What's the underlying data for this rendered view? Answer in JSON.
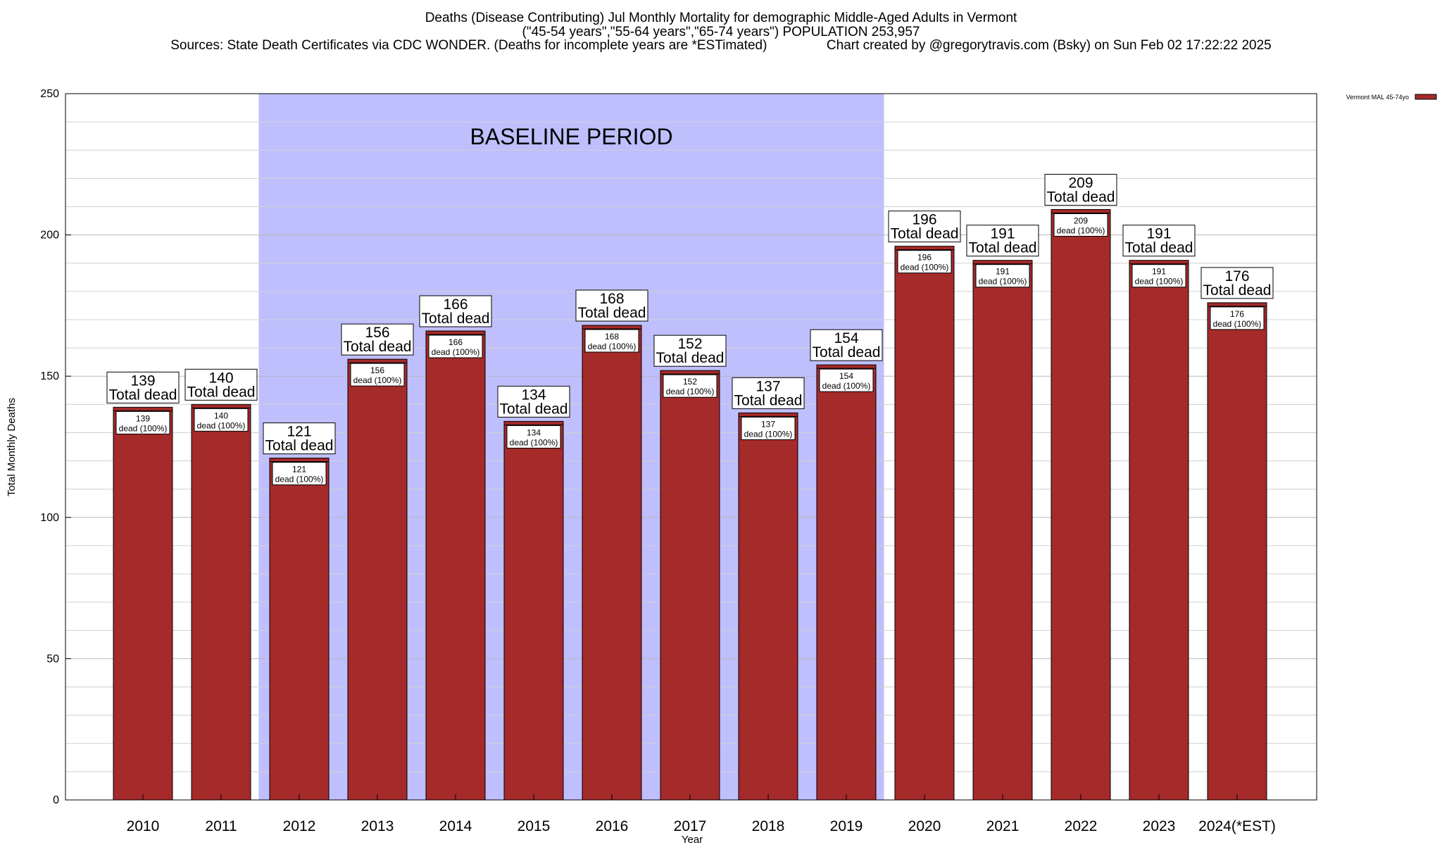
{
  "header": {
    "title_line1": "Deaths (Disease Contributing) Jul Monthly Mortality for demographic Middle-Aged Adults in Vermont",
    "title_line2": "(\"45-54 years\",\"55-64 years\",\"65-74 years\") POPULATION 253,957",
    "title_line3": "Sources: State Death Certificates via CDC WONDER. (Deaths for incomplete years are *ESTimated)                Chart created by @gregorytravis.com (Bsky) on Sun Feb 02 17:22:22 2025"
  },
  "chart_data": {
    "type": "bar",
    "title": "Deaths (Disease Contributing) Jul Monthly Mortality for demographic Middle-Aged Adults in Vermont",
    "xlabel": "Year",
    "ylabel": "Total Monthly Deaths",
    "ylim": [
      0,
      250
    ],
    "y_ticks": [
      0,
      50,
      100,
      150,
      200,
      250
    ],
    "y_minor_step": 10,
    "grid": true,
    "categories": [
      "2010",
      "2011",
      "2012",
      "2013",
      "2014",
      "2015",
      "2016",
      "2017",
      "2018",
      "2019",
      "2020",
      "2021",
      "2022",
      "2023",
      "2024(*EST)"
    ],
    "series": [
      {
        "name": "Vermont MAL 45-74yo",
        "color": "#a52a2a",
        "values": [
          139,
          140,
          121,
          156,
          166,
          134,
          168,
          152,
          137,
          154,
          196,
          191,
          209,
          191,
          176
        ]
      }
    ],
    "bar_label_top": "Total dead",
    "bar_label_inner": "dead (100%)",
    "baseline_region": {
      "label": "BASELINE PERIOD",
      "start_category": "2012",
      "end_category": "2019",
      "color": "#bfbffe"
    },
    "legend": {
      "position": "top-right",
      "entries": [
        "Vermont MAL 45-74yo"
      ]
    }
  }
}
